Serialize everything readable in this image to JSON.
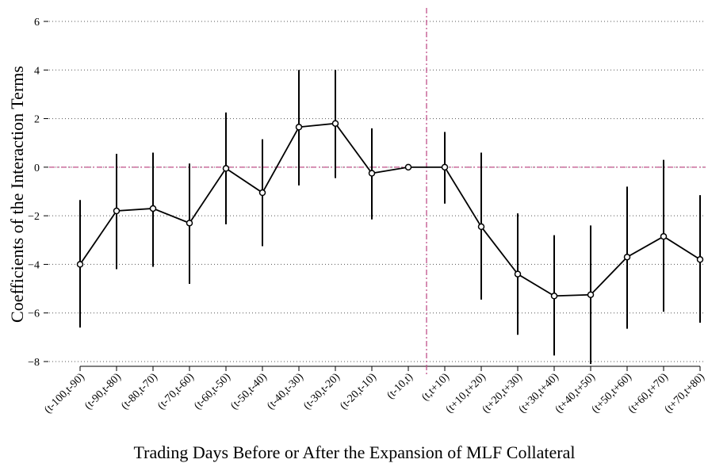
{
  "chart_data": {
    "type": "errorbar-line",
    "xlabel": "Trading Days Before or After the Expansion of MLF Collateral",
    "ylabel": "Coefficients of the Interaction Terms",
    "categories": [
      "(t-100,t-90)",
      "(t-90,t-80)",
      "(t-80,t-70)",
      "(t-70,t-60)",
      "(t-60,t-50)",
      "(t-50,t-40)",
      "(t-40,t-30)",
      "(t-30,t-20)",
      "(t-20,t-10)",
      "(t-10,t)",
      "(t,t+10)",
      "(t+10,t+20)",
      "(t+20,t+30)",
      "(t+30,t+40)",
      "(t+40,t+50)",
      "(t+50,t+60)",
      "(t+60,t+70)",
      "(t+70,t+80)"
    ],
    "values": [
      -4.0,
      -1.8,
      -1.7,
      -2.3,
      -0.05,
      -1.05,
      1.65,
      1.8,
      -0.25,
      0,
      0,
      -2.45,
      -4.4,
      -5.3,
      -5.25,
      -3.7,
      -2.85,
      -3.8
    ],
    "lower": [
      -6.6,
      -4.2,
      -4.1,
      -4.8,
      -2.35,
      -3.25,
      -0.75,
      -0.45,
      -2.15,
      null,
      -1.5,
      -5.45,
      -6.9,
      -7.75,
      -8.1,
      -6.65,
      -5.95,
      -6.4
    ],
    "upper": [
      -1.35,
      0.55,
      0.6,
      0.15,
      2.25,
      1.15,
      4.0,
      4.0,
      1.6,
      null,
      1.45,
      0.6,
      -1.9,
      -2.8,
      -2.4,
      -0.8,
      0.3,
      -1.15
    ],
    "color": "#000000",
    "ylim": [
      -8,
      6
    ],
    "yticks": [
      {
        "value": -8,
        "label": "−8"
      },
      {
        "value": -6,
        "label": "−6"
      },
      {
        "value": -4,
        "label": "−4"
      },
      {
        "value": -2,
        "label": "−2"
      },
      0,
      2,
      4,
      6
    ],
    "grid": true,
    "hline": 0,
    "vline": 9.5,
    "ref_color": "#c0508a"
  }
}
